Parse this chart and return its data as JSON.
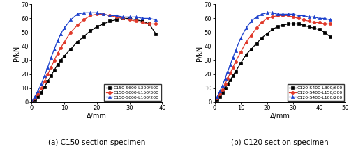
{
  "subplot_a": {
    "title": "(a) C150 section specimen",
    "xlabel": "Δ/mm",
    "ylabel": "P/kN",
    "xlim": [
      0,
      40
    ],
    "ylim": [
      0,
      70
    ],
    "xticks": [
      0,
      10,
      20,
      30,
      40
    ],
    "yticks": [
      0,
      10,
      20,
      30,
      40,
      50,
      60,
      70
    ],
    "series": [
      {
        "label": "C150-S600-L300/600",
        "color": "#000000",
        "marker": "s",
        "x": [
          0,
          1,
          2,
          3,
          4,
          5,
          6,
          7,
          8,
          9,
          10,
          12,
          14,
          16,
          18,
          20,
          22,
          24,
          26,
          28,
          30,
          32,
          34,
          36,
          38
        ],
        "y": [
          0,
          2,
          4,
          7,
          11,
          15,
          19,
          23,
          27,
          30,
          33,
          38,
          43,
          47,
          51,
          54,
          56,
          58,
          59,
          60,
          60,
          59,
          58,
          56,
          49
        ]
      },
      {
        "label": "C150-S600-L150/300",
        "color": "#e0392a",
        "marker": "o",
        "x": [
          0,
          1,
          2,
          3,
          4,
          5,
          6,
          7,
          8,
          9,
          10,
          12,
          14,
          16,
          18,
          20,
          22,
          24,
          26,
          28,
          30,
          32,
          34,
          36,
          38
        ],
        "y": [
          0,
          3,
          6,
          10,
          15,
          20,
          25,
          30,
          35,
          39,
          43,
          50,
          55,
          59,
          62,
          63,
          63,
          62,
          61,
          60,
          59,
          58,
          57,
          56,
          56
        ]
      },
      {
        "label": "C150-S600-L100/200",
        "color": "#1a3fcc",
        "marker": "^",
        "x": [
          0,
          1,
          2,
          3,
          4,
          5,
          6,
          7,
          8,
          9,
          10,
          12,
          14,
          16,
          18,
          20,
          22,
          24,
          26,
          28,
          30,
          32,
          34,
          36,
          38
        ],
        "y": [
          0,
          4,
          8,
          13,
          19,
          25,
          32,
          38,
          44,
          49,
          53,
          59,
          63,
          64,
          64,
          64,
          63,
          62,
          62,
          61,
          61,
          61,
          60,
          60,
          59
        ]
      }
    ]
  },
  "subplot_b": {
    "title": "(b) C120 section specimen",
    "xlabel": "Δ/mm",
    "ylabel": "P/kN",
    "xlim": [
      0,
      50
    ],
    "ylim": [
      0,
      70
    ],
    "xticks": [
      0,
      10,
      20,
      30,
      40,
      50
    ],
    "yticks": [
      0,
      10,
      20,
      30,
      40,
      50,
      60,
      70
    ],
    "series": [
      {
        "label": "C120-S400-L300/600",
        "color": "#000000",
        "marker": "s",
        "x": [
          0,
          1,
          2,
          3,
          4,
          5,
          6,
          7,
          8,
          10,
          12,
          14,
          16,
          18,
          20,
          22,
          24,
          26,
          28,
          30,
          32,
          34,
          36,
          38,
          40,
          42,
          44
        ],
        "y": [
          0,
          2,
          4,
          7,
          10,
          13,
          16,
          19,
          22,
          28,
          34,
          38,
          42,
          46,
          49,
          52,
          54,
          55,
          56,
          56,
          56,
          55,
          54,
          53,
          52,
          50,
          47
        ]
      },
      {
        "label": "C120-S400-L150/300",
        "color": "#e0392a",
        "marker": "o",
        "x": [
          0,
          1,
          2,
          3,
          4,
          5,
          6,
          7,
          8,
          10,
          12,
          14,
          16,
          18,
          20,
          22,
          24,
          26,
          28,
          30,
          32,
          34,
          36,
          38,
          40,
          42,
          44
        ],
        "y": [
          0,
          3,
          6,
          9,
          13,
          17,
          21,
          25,
          29,
          36,
          43,
          48,
          53,
          57,
          60,
          61,
          62,
          62,
          62,
          61,
          60,
          59,
          58,
          57,
          57,
          56,
          56
        ]
      },
      {
        "label": "C120-S400-L100/200",
        "color": "#1a3fcc",
        "marker": "^",
        "x": [
          0,
          1,
          2,
          3,
          4,
          5,
          6,
          7,
          8,
          10,
          12,
          14,
          16,
          18,
          20,
          22,
          24,
          26,
          28,
          30,
          32,
          34,
          36,
          38,
          40,
          42,
          44
        ],
        "y": [
          0,
          4,
          8,
          12,
          17,
          22,
          27,
          32,
          37,
          46,
          53,
          58,
          61,
          63,
          64,
          64,
          63,
          63,
          63,
          63,
          62,
          62,
          61,
          61,
          60,
          60,
          59
        ]
      }
    ]
  }
}
